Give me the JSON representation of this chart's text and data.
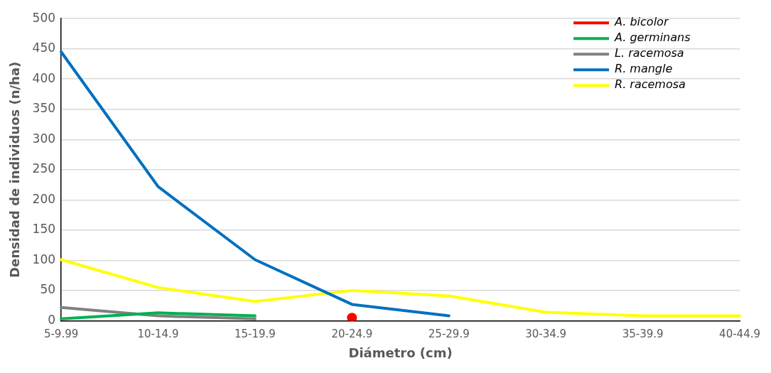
{
  "chart_data": {
    "type": "line",
    "xlabel": "Diámetro (cm)",
    "ylabel": "Densidad de individuos (n/ha)",
    "categories": [
      "5-9.99",
      "10-14.9",
      "15-19.9",
      "20-24.9",
      "25-29.9",
      "30-34.9",
      "35-39.9",
      "40-44.9"
    ],
    "series": [
      {
        "name": "A. bicolor",
        "color": "#ff0000",
        "marker": "circle",
        "values": [
          null,
          null,
          null,
          5,
          null,
          null,
          null,
          null
        ]
      },
      {
        "name": "A. germinans",
        "color": "#00b050",
        "values": [
          3,
          13,
          8,
          null,
          null,
          null,
          null,
          null
        ]
      },
      {
        "name": "L. racemosa",
        "color": "#808080",
        "values": [
          22,
          8,
          3,
          null,
          null,
          null,
          null,
          null
        ]
      },
      {
        "name": "R. mangle",
        "color": "#0070c0",
        "values": [
          445,
          222,
          101,
          27,
          8,
          null,
          null,
          null
        ]
      },
      {
        "name": "R. racemosa",
        "color": "#ffff00",
        "values": [
          101,
          55,
          32,
          50,
          41,
          14,
          8,
          8
        ]
      }
    ],
    "ylim": [
      0,
      500
    ],
    "yticks": [
      0,
      50,
      100,
      150,
      200,
      250,
      300,
      350,
      400,
      450,
      500
    ],
    "grid": "y",
    "legend": "top right",
    "marker": "none",
    "line_style": "solid"
  }
}
